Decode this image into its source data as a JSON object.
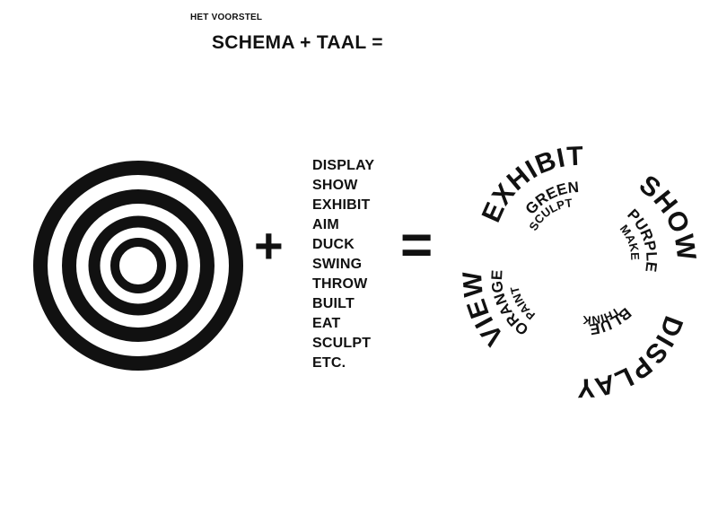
{
  "header": {
    "subtitle": "HET VOORSTEL",
    "title": "SCHEMA + TAAL ="
  },
  "operators": {
    "plus": "+",
    "equals": "="
  },
  "target": {
    "rings": 4
  },
  "word_list": [
    "DISPLAY",
    "SHOW",
    "EXHIBIT",
    "AIM",
    "DUCK",
    "SWING",
    "THROW",
    "BUILT",
    "EAT",
    "SCULPT",
    "ETC."
  ],
  "spiral": {
    "outer": [
      "EXHIBIT",
      "SHOW",
      "DISPLAY",
      "VIEW"
    ],
    "middle": [
      "GREEN",
      "PURPLE",
      "BLUE",
      "ORANGE"
    ],
    "inner": [
      "SCULPT",
      "MAKE",
      "THINK",
      "PAINT"
    ]
  },
  "colors": {
    "ink": "#111111",
    "paper": "#ffffff"
  }
}
